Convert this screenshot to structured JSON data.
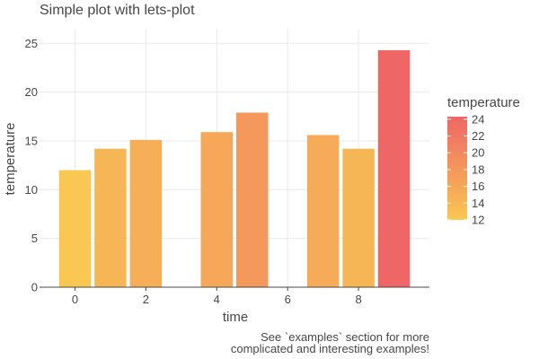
{
  "chart_data": {
    "type": "bar",
    "title": "Simple plot with lets-plot",
    "xlabel": "time",
    "ylabel": "temperature",
    "x": [
      0,
      1,
      2,
      3,
      4,
      5,
      6,
      7,
      8,
      9
    ],
    "values": [
      12.0,
      14.2,
      15.1,
      null,
      15.9,
      17.9,
      null,
      15.6,
      14.2,
      24.3
    ],
    "xlim": [
      -1,
      10
    ],
    "ylim": [
      0,
      26.5
    ],
    "x_ticks": [
      "0",
      "2",
      "4",
      "6",
      "8"
    ],
    "y_ticks": [
      "0",
      "5",
      "10",
      "15",
      "20",
      "25"
    ],
    "grid": true,
    "legend": {
      "title": "temperature",
      "type": "colorbar",
      "placement": "right",
      "range": [
        12,
        24.3
      ],
      "ticks": [
        "12",
        "14",
        "16",
        "18",
        "20",
        "22",
        "24"
      ],
      "color_low": "#f9c752",
      "color_high": "#ee6666"
    },
    "caption": [
      "See `examples` section for more",
      "complicated and interesting examples!"
    ]
  }
}
